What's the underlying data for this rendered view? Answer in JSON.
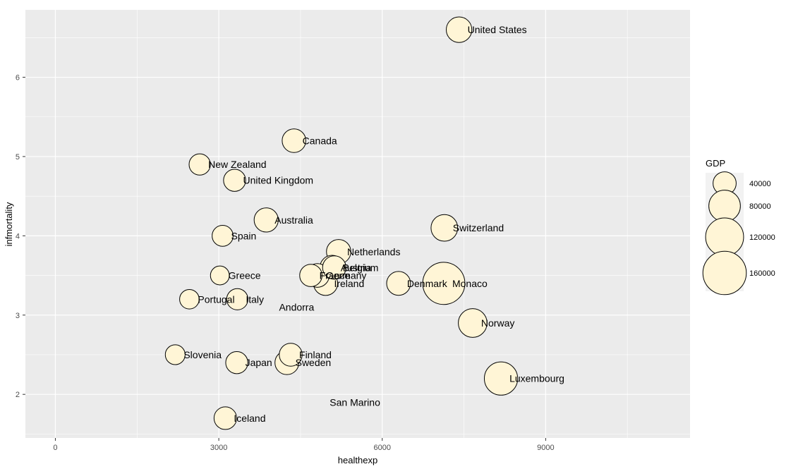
{
  "chart_data": {
    "type": "scatter",
    "xlabel": "healthexp",
    "ylabel": "infmortality",
    "xlim": [
      -550,
      11650
    ],
    "ylim": [
      1.45,
      6.85
    ],
    "x_ticks": [
      0,
      3000,
      6000,
      9000
    ],
    "x_tick_labels": [
      "0",
      "3000",
      "6000",
      "9000"
    ],
    "y_ticks": [
      2,
      3,
      4,
      5,
      6
    ],
    "y_tick_labels": [
      "2",
      "3",
      "4",
      "5",
      "6"
    ],
    "grid": true,
    "size_legend": {
      "title": "GDP",
      "position": "right",
      "values": [
        40000,
        80000,
        120000,
        160000
      ],
      "labels": [
        "40000",
        "80000",
        "120000",
        "160000"
      ]
    },
    "colors": {
      "point_fill": "#fff5d6",
      "point_stroke": "#000000",
      "panel": "#ebebeb",
      "grid": "#ffffff"
    },
    "points": [
      {
        "name": "United States",
        "x": 7410,
        "y": 6.6,
        "gdp": 50000
      },
      {
        "name": "Canada",
        "x": 4380,
        "y": 5.2,
        "gdp": 42000
      },
      {
        "name": "New Zealand",
        "x": 2650,
        "y": 4.9,
        "gdp": 33000
      },
      {
        "name": "United Kingdom",
        "x": 3290,
        "y": 4.7,
        "gdp": 36000
      },
      {
        "name": "Australia",
        "x": 3870,
        "y": 4.2,
        "gdp": 44000
      },
      {
        "name": "Switzerland",
        "x": 7140,
        "y": 4.1,
        "gdp": 55000
      },
      {
        "name": "Spain",
        "x": 3070,
        "y": 4.0,
        "gdp": 32000
      },
      {
        "name": "Netherlands",
        "x": 5200,
        "y": 3.8,
        "gdp": 45000
      },
      {
        "name": "Austria",
        "x": 5080,
        "y": 3.6,
        "gdp": 45000
      },
      {
        "name": "Belgium",
        "x": 5120,
        "y": 3.6,
        "gdp": 41000
      },
      {
        "name": "Germany",
        "x": 4810,
        "y": 3.5,
        "gdp": 42000
      },
      {
        "name": "France",
        "x": 4690,
        "y": 3.5,
        "gdp": 37000
      },
      {
        "name": "Greece",
        "x": 3020,
        "y": 3.5,
        "gdp": 25000
      },
      {
        "name": "Ireland",
        "x": 4960,
        "y": 3.4,
        "gdp": 44000
      },
      {
        "name": "Denmark",
        "x": 6300,
        "y": 3.4,
        "gdp": 43000
      },
      {
        "name": "Monaco",
        "x": 7130,
        "y": 3.4,
        "gdp": 150000
      },
      {
        "name": "Portugal",
        "x": 2460,
        "y": 3.2,
        "gdp": 27000
      },
      {
        "name": "Italy",
        "x": 3340,
        "y": 3.2,
        "gdp": 33000
      },
      {
        "name": "Andorra",
        "x": 3950,
        "y": 3.1,
        "gdp": 0
      },
      {
        "name": "Norway",
        "x": 7660,
        "y": 2.9,
        "gdp": 65000
      },
      {
        "name": "Slovenia",
        "x": 2200,
        "y": 2.5,
        "gdp": 28000
      },
      {
        "name": "Finland",
        "x": 4320,
        "y": 2.5,
        "gdp": 39000
      },
      {
        "name": "Japan",
        "x": 3330,
        "y": 2.4,
        "gdp": 36000
      },
      {
        "name": "Sweden",
        "x": 4250,
        "y": 2.4,
        "gdp": 43000
      },
      {
        "name": "Luxembourg",
        "x": 8180,
        "y": 2.2,
        "gdp": 90000
      },
      {
        "name": "San Marino",
        "x": 4880,
        "y": 1.9,
        "gdp": 0
      },
      {
        "name": "Iceland",
        "x": 3120,
        "y": 1.7,
        "gdp": 38000
      }
    ]
  }
}
